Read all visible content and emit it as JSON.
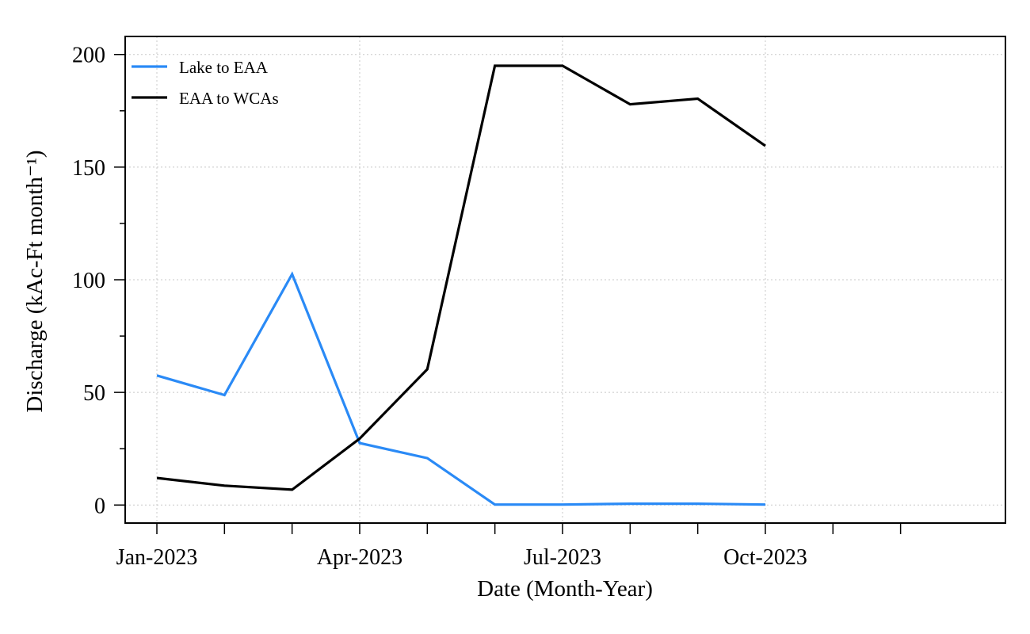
{
  "chart_data": {
    "type": "line",
    "xlabel": "Date (Month-Year)",
    "ylabel": "Discharge (kAc-Ft month⁻¹)",
    "x_tick_labels": [
      "Jan-2023",
      "Apr-2023",
      "Jul-2023",
      "Oct-2023"
    ],
    "x_minor_ticks": [
      "Feb-2023",
      "Mar-2023",
      "May-2023",
      "Jun-2023",
      "Aug-2023",
      "Sep-2023",
      "Nov-2023",
      "Dec-2023"
    ],
    "x": [
      "Jan-2023",
      "Feb-2023",
      "Mar-2023",
      "Apr-2023",
      "May-2023",
      "Jun-2023",
      "Jul-2023",
      "Aug-2023",
      "Sep-2023",
      "Oct-2023"
    ],
    "xlim": [
      "Jan-2023",
      "Dec-2023"
    ],
    "ylim": [
      -8,
      208
    ],
    "y_ticks": [
      0,
      50,
      100,
      150,
      200
    ],
    "y_minor_ticks": [
      25,
      75,
      125,
      175
    ],
    "grid": true,
    "legend_position": "top-left",
    "series": [
      {
        "name": "Lake to EAA",
        "color": "#2a8af6",
        "values": [
          57.5,
          48.8,
          102.5,
          27.5,
          20.8,
          0.2,
          0.2,
          0.6,
          0.6,
          0.2
        ]
      },
      {
        "name": "EAA to WCAs",
        "color": "#000000",
        "values": [
          12.0,
          8.6,
          6.8,
          29.5,
          60.3,
          195.0,
          195.0,
          177.9,
          180.4,
          159.4
        ]
      }
    ]
  }
}
